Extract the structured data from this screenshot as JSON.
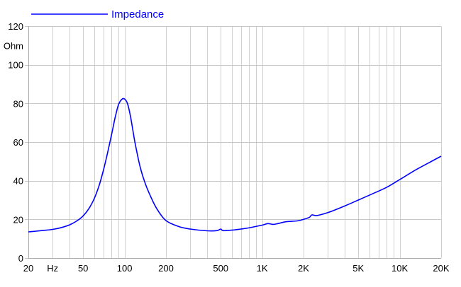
{
  "chart_data": {
    "type": "line",
    "title": "",
    "xlabel": "Hz",
    "ylabel": "Ohm",
    "xscale": "log",
    "xlim": [
      20,
      20000
    ],
    "ylim": [
      0,
      120
    ],
    "grid": true,
    "legend": {
      "position": "top-left",
      "entries": [
        "Impedance"
      ]
    },
    "x_tick_labels": [
      {
        "value": 20,
        "label": "20"
      },
      {
        "value": 30,
        "label": "Hz"
      },
      {
        "value": 50,
        "label": "50"
      },
      {
        "value": 100,
        "label": "100"
      },
      {
        "value": 200,
        "label": "200"
      },
      {
        "value": 500,
        "label": "500"
      },
      {
        "value": 1000,
        "label": "1K"
      },
      {
        "value": 2000,
        "label": "2K"
      },
      {
        "value": 5000,
        "label": "5K"
      },
      {
        "value": 10000,
        "label": "10K"
      },
      {
        "value": 20000,
        "label": "20K"
      }
    ],
    "y_tick_labels": [
      {
        "value": 0,
        "label": "0"
      },
      {
        "value": 20,
        "label": "20"
      },
      {
        "value": 40,
        "label": "40"
      },
      {
        "value": 60,
        "label": "60"
      },
      {
        "value": 80,
        "label": "80"
      },
      {
        "value": 100,
        "label": "100"
      },
      {
        "value": 110,
        "label": "Ohm"
      },
      {
        "value": 120,
        "label": "120"
      }
    ],
    "series": [
      {
        "name": "Impedance",
        "color": "#0000ff",
        "x": [
          20,
          25,
          30,
          35,
          40,
          45,
          50,
          55,
          60,
          65,
          70,
          75,
          80,
          85,
          90,
          95,
          100,
          105,
          110,
          115,
          120,
          130,
          140,
          150,
          170,
          200,
          250,
          300,
          400,
          470,
          500,
          520,
          600,
          700,
          800,
          1000,
          1100,
          1200,
          1300,
          1500,
          1800,
          2000,
          2200,
          2300,
          2500,
          3000,
          4000,
          5000,
          6000,
          8000,
          10000,
          13000,
          16000,
          20000
        ],
        "y": [
          13.5,
          14.2,
          14.8,
          15.8,
          17.2,
          19.2,
          21.8,
          25.5,
          30.5,
          37,
          45,
          54,
          63,
          72,
          79,
          82,
          82.3,
          80,
          74,
          66,
          58.5,
          47,
          39.5,
          34,
          26,
          19.4,
          16.2,
          15,
          14.1,
          14.2,
          15,
          14.2,
          14.4,
          15,
          15.6,
          17,
          17.8,
          17.4,
          17.8,
          18.8,
          19.2,
          20,
          21,
          22.3,
          22,
          23.5,
          27,
          30,
          32.5,
          36.5,
          40.6,
          45.5,
          49,
          52.7
        ]
      }
    ]
  }
}
